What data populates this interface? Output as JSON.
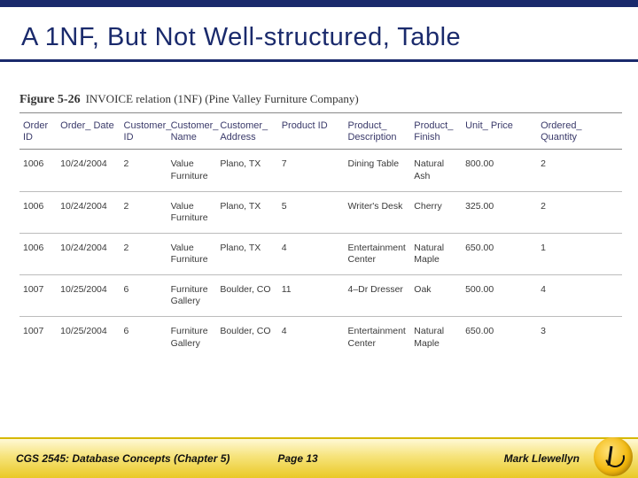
{
  "title": "A 1NF, But Not Well-structured, Table",
  "figure": {
    "num": "Figure 5-26",
    "text": "INVOICE relation (1NF) (Pine Valley Furniture Company)"
  },
  "table": {
    "columns": [
      "Order ID",
      "Order_ Date",
      "Customer_ ID",
      "Customer_ Name",
      "Customer_ Address",
      "Product ID",
      "Product_ Description",
      "Product_ Finish",
      "Unit_ Price",
      "Ordered_ Quantity"
    ],
    "rows": [
      [
        "1006",
        "10/24/2004",
        "2",
        "Value Furniture",
        "Plano, TX",
        "7",
        "Dining Table",
        "Natural Ash",
        "800.00",
        "2"
      ],
      [
        "1006",
        "10/24/2004",
        "2",
        "Value Furniture",
        "Plano, TX",
        "5",
        "Writer's Desk",
        "Cherry",
        "325.00",
        "2"
      ],
      [
        "1006",
        "10/24/2004",
        "2",
        "Value Furniture",
        "Plano, TX",
        "4",
        "Entertainment Center",
        "Natural Maple",
        "650.00",
        "1"
      ],
      [
        "1007",
        "10/25/2004",
        "6",
        "Furniture Gallery",
        "Boulder, CO",
        "11",
        "4–Dr Dresser",
        "Oak",
        "500.00",
        "4"
      ],
      [
        "1007",
        "10/25/2004",
        "6",
        "Furniture Gallery",
        "Boulder, CO",
        "4",
        "Entertainment Center",
        "Natural Maple",
        "650.00",
        "3"
      ]
    ]
  },
  "footer": {
    "left": "CGS 2545: Database Concepts  (Chapter 5)",
    "mid": "Page 13",
    "right": "Mark Llewellyn"
  },
  "colors": {
    "navy": "#1a2a6c",
    "gold_light": "#fff9d6",
    "gold_mid": "#f6e37a",
    "gold_dark": "#eac926"
  }
}
